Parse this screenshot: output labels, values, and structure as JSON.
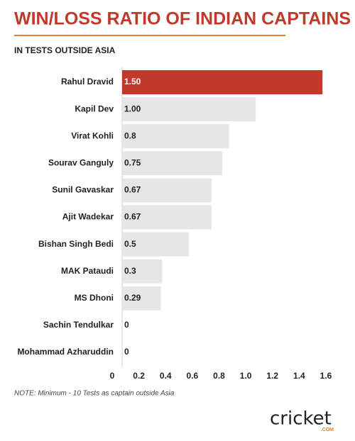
{
  "chart_data": {
    "type": "bar",
    "orientation": "horizontal",
    "title": "WIN/LOSS RATIO OF INDIAN CAPTAINS",
    "subtitle": "IN TESTS OUTSIDE ASIA",
    "categories": [
      "Rahul Dravid",
      "Kapil Dev",
      "Virat Kohli",
      "Sourav Ganguly",
      "Sunil Gavaskar",
      "Ajit Wadekar",
      "Bishan Singh Bedi",
      "MAK Pataudi",
      "MS Dhoni",
      "Sachin Tendulkar",
      "Mohammad Azharuddin"
    ],
    "values": [
      1.5,
      1.0,
      0.8,
      0.75,
      0.67,
      0.67,
      0.5,
      0.3,
      0.29,
      0,
      0
    ],
    "value_labels": [
      "1.50",
      "1.00",
      "0.8",
      "0.75",
      "0.67",
      "0.67",
      "0.5",
      "0.3",
      "0.29",
      "0",
      "0"
    ],
    "colors": [
      "#c0392b",
      "#e6e6e6",
      "#e6e6e6",
      "#e6e6e6",
      "#e6e6e6",
      "#e6e6e6",
      "#e6e6e6",
      "#e6e6e6",
      "#e6e6e6",
      "#e6e6e6",
      "#e6e6e6"
    ],
    "xlim": [
      0,
      1.6
    ],
    "xticks": [
      0,
      0.2,
      0.4,
      0.6,
      0.8,
      {
        "value": 1,
        "label": "1.0"
      },
      1.2,
      1.4,
      1.6
    ],
    "grid": false,
    "note": "NOTE: Minimum - 10 Tests as captain outside Asia"
  },
  "logo": {
    "text": "cricket",
    "sub": ".COM"
  }
}
